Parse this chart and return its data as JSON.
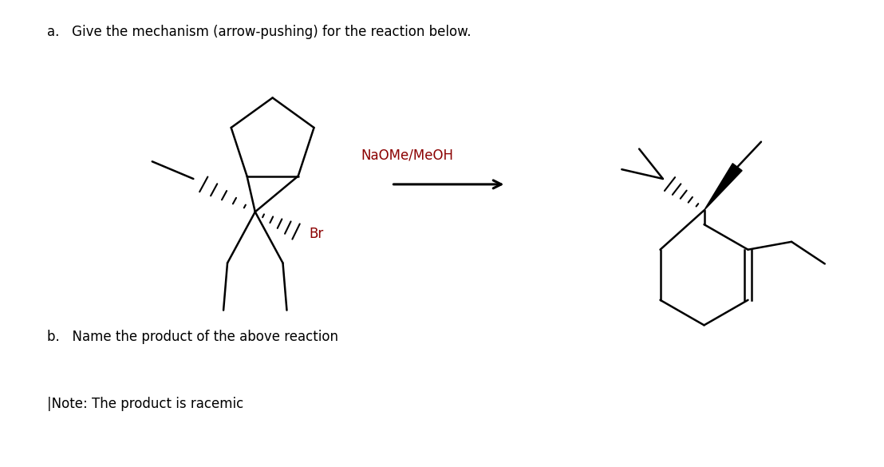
{
  "title_a": "a.   Give the mechanism (arrow-pushing) for the reaction below.",
  "reagent": "NaOMe/MeOH",
  "label_b": "b.   Name the product of the above reaction",
  "note": "|Note: The product is racemic",
  "bg_color": "#ffffff",
  "text_color": "#000000",
  "lw": 1.8
}
